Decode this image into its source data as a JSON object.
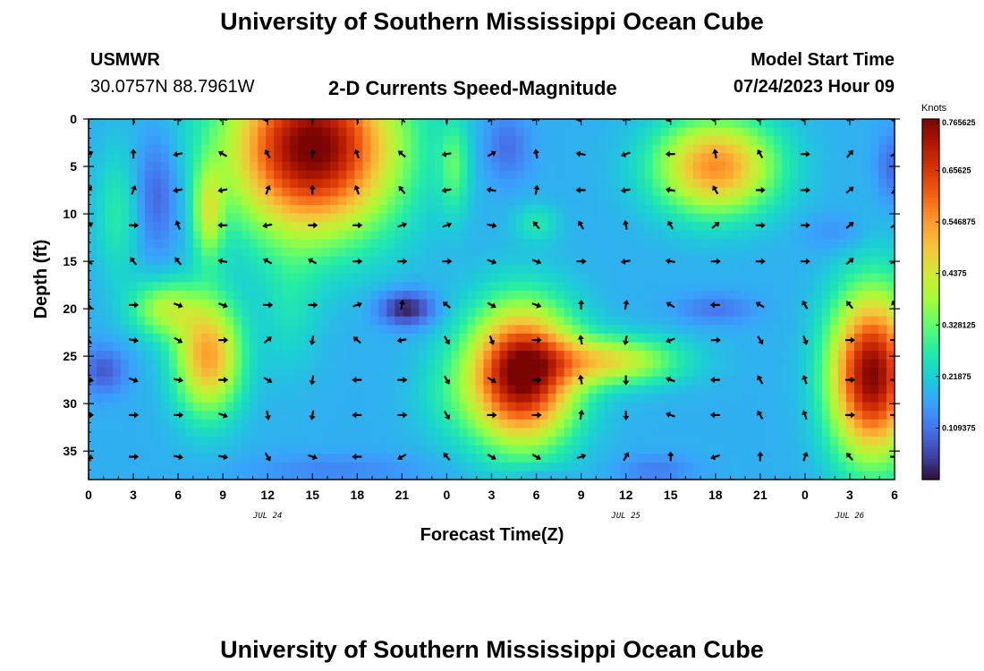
{
  "header": {
    "title": "University of Southern Mississippi Ocean Cube",
    "station_name": "USMWR",
    "station_coords": "30.0757N  88.7961W",
    "subtitle": "2-D Currents Speed-Magnitude",
    "model_start_label": "Model Start Time",
    "model_start_value": "07/24/2023 Hour 09"
  },
  "footer": {
    "title": "University of Southern Mississippi Ocean Cube"
  },
  "chart_data": {
    "type": "heatmap",
    "title": "2-D Currents Speed-Magnitude",
    "xlabel": "Forecast Time(Z)",
    "ylabel": "Depth (ft)",
    "x_tick_labels": [
      "0",
      "3",
      "6",
      "9",
      "12",
      "15",
      "18",
      "21",
      "0",
      "3",
      "6",
      "9",
      "12",
      "15",
      "18",
      "21",
      "0",
      "3",
      "6"
    ],
    "x_range_hours": [
      0,
      54
    ],
    "date_labels": [
      {
        "text": "JUL 24",
        "hour": 12
      },
      {
        "text": "JUL 25",
        "hour": 36
      },
      {
        "text": "JUL 26",
        "hour": 51
      }
    ],
    "y_ticks": [
      0,
      5,
      10,
      15,
      20,
      25,
      30,
      35
    ],
    "y_range": [
      0,
      38
    ],
    "y_inverted": true,
    "colorbar": {
      "unit": "Knots",
      "min": 0.0,
      "max": 0.765625,
      "tick_labels": [
        "0.765625",
        "0.65625",
        "0.546875",
        "0.4375",
        "0.328125",
        "0.21875",
        "0.109375"
      ],
      "tick_values": [
        0.765625,
        0.65625,
        0.546875,
        0.4375,
        0.328125,
        0.21875,
        0.109375
      ],
      "colormap": [
        "#30123b",
        "#4145ab",
        "#4675ed",
        "#39a2fc",
        "#1bcfd4",
        "#24eca6",
        "#61fc6c",
        "#a4fc3b",
        "#d1e834",
        "#f3c63a",
        "#fe9b2d",
        "#f36315",
        "#d93806",
        "#b11901",
        "#7a0403"
      ]
    },
    "speed_field": {
      "description_units": "knots",
      "background": 0.18,
      "blobs": [
        {
          "t": 15,
          "d": 3,
          "rt": 5.5,
          "rd": 9,
          "v": 0.6
        },
        {
          "t": 8,
          "d": 25,
          "rt": 2.2,
          "rd": 6,
          "v": 0.36
        },
        {
          "t": 5,
          "d": 20,
          "rt": 2.2,
          "rd": 3,
          "v": 0.2
        },
        {
          "t": 29,
          "d": 27,
          "rt": 3.5,
          "rd": 7,
          "v": 0.6
        },
        {
          "t": 35,
          "d": 25.5,
          "rt": 4.5,
          "rd": 2.5,
          "v": 0.26
        },
        {
          "t": 42,
          "d": 5,
          "rt": 4,
          "rd": 5,
          "v": 0.38
        },
        {
          "t": 52.5,
          "d": 27,
          "rt": 2.8,
          "rd": 8.5,
          "v": 0.58
        },
        {
          "t": 4.5,
          "d": 8,
          "rt": 1.5,
          "rd": 6,
          "v": -0.1
        },
        {
          "t": 21.3,
          "d": 20,
          "rt": 1.8,
          "rd": 1.8,
          "v": -0.17
        },
        {
          "t": 1,
          "d": 26.5,
          "rt": 1.5,
          "rd": 2.5,
          "v": -0.1
        },
        {
          "t": 28,
          "d": 3,
          "rt": 1.5,
          "rd": 3.5,
          "v": -0.08
        },
        {
          "t": 53.8,
          "d": 5,
          "rt": 1,
          "rd": 3.5,
          "v": -0.08
        },
        {
          "t": 42,
          "d": 20,
          "rt": 2.5,
          "rd": 1.5,
          "v": -0.07
        },
        {
          "t": 50,
          "d": 12,
          "rt": 2,
          "rd": 2,
          "v": -0.04
        },
        {
          "t": 38,
          "d": 37,
          "rt": 2.5,
          "rd": 1.5,
          "v": -0.06
        },
        {
          "t": 16.5,
          "d": 37,
          "rt": 6,
          "rd": 1.6,
          "v": -0.05
        },
        {
          "t": 30,
          "d": 37.5,
          "rt": 2,
          "rd": 1,
          "v": -0.04
        },
        {
          "t": 13.5,
          "d": 20,
          "rt": 2,
          "rd": 7,
          "v": 0.06
        },
        {
          "t": 24,
          "d": 29,
          "rt": 2.5,
          "rd": 5,
          "v": 0.05
        },
        {
          "t": 30,
          "d": 11,
          "rt": 1.5,
          "rd": 2,
          "v": 0.08
        },
        {
          "t": 2,
          "d": 10,
          "rt": 1.6,
          "rd": 7,
          "v": 0.09
        },
        {
          "t": 8,
          "d": 10,
          "rt": 1,
          "rd": 5,
          "v": 0.2
        },
        {
          "t": 24.5,
          "d": 5,
          "rt": 1,
          "rd": 5,
          "v": 0.12
        }
      ]
    },
    "vectors": {
      "hours": [
        0,
        3,
        6,
        9,
        12,
        15,
        18,
        21,
        24,
        27,
        30,
        33,
        36,
        39,
        42,
        45,
        48,
        51,
        54
      ],
      "depths": [
        0,
        3.7,
        7.5,
        11.2,
        15,
        19.6,
        23.3,
        27.5,
        31.2,
        35.6
      ],
      "angles_deg": [
        [
          90,
          100,
          10,
          170,
          190,
          90,
          100,
          130,
          90,
          40,
          20,
          190,
          170,
          200,
          180,
          180,
          180,
          170,
          170
        ],
        [
          30,
          90,
          190,
          150,
          120,
          90,
          110,
          140,
          190,
          30,
          100,
          170,
          200,
          180,
          100,
          120,
          0,
          50,
          30
        ],
        [
          50,
          70,
          190,
          190,
          70,
          90,
          110,
          130,
          190,
          170,
          80,
          180,
          190,
          170,
          120,
          0,
          0,
          40,
          50
        ],
        [
          30,
          0,
          110,
          180,
          190,
          0,
          0,
          20,
          20,
          350,
          130,
          120,
          100,
          120,
          40,
          0,
          0,
          40,
          30
        ],
        [
          140,
          130,
          130,
          170,
          150,
          150,
          0,
          0,
          0,
          340,
          340,
          0,
          190,
          170,
          0,
          0,
          0,
          40,
          30
        ],
        [
          130,
          0,
          340,
          340,
          0,
          0,
          20,
          80,
          140,
          330,
          340,
          90,
          80,
          150,
          180,
          150,
          120,
          130,
          120
        ],
        [
          130,
          350,
          330,
          0,
          40,
          260,
          140,
          190,
          300,
          290,
          0,
          100,
          260,
          200,
          0,
          300,
          290,
          0,
          0
        ],
        [
          350,
          340,
          350,
          0,
          330,
          260,
          180,
          0,
          300,
          330,
          0,
          100,
          270,
          160,
          180,
          120,
          110,
          0,
          0
        ],
        [
          0,
          0,
          0,
          340,
          280,
          260,
          180,
          0,
          300,
          0,
          0,
          80,
          270,
          160,
          180,
          120,
          110,
          0,
          0
        ],
        [
          340,
          0,
          350,
          350,
          300,
          340,
          180,
          210,
          130,
          330,
          330,
          20,
          60,
          90,
          200,
          90,
          70,
          130,
          0
        ]
      ]
    }
  }
}
